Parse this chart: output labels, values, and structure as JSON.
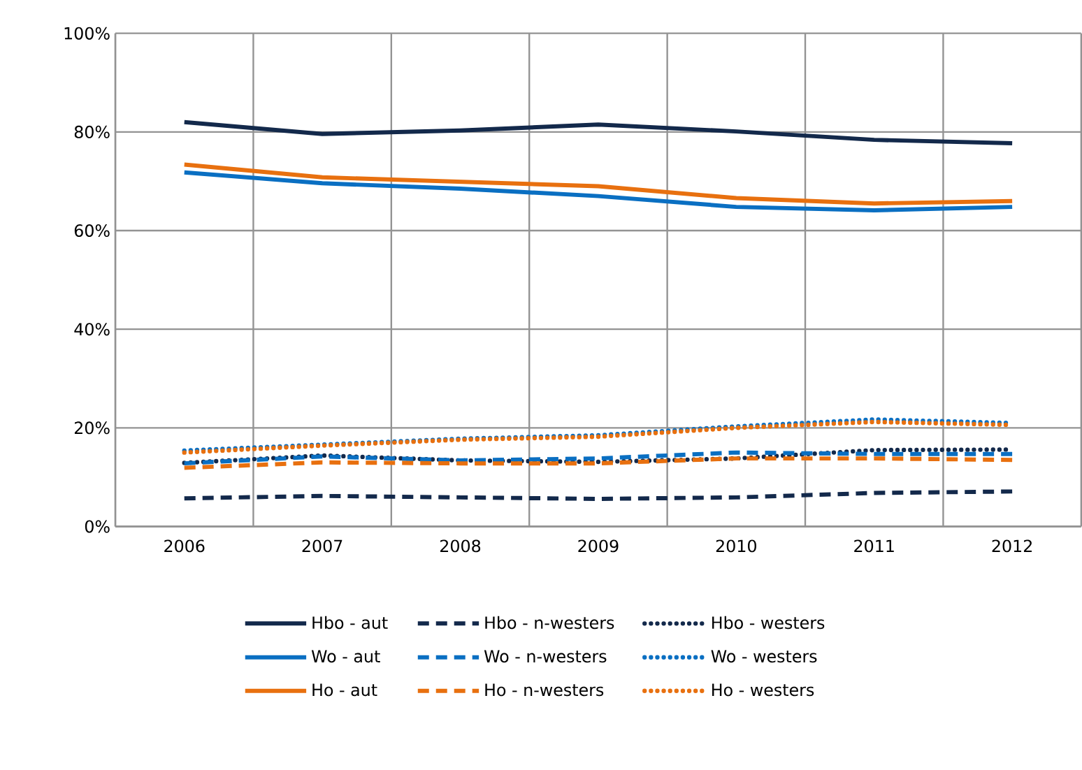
{
  "chart_data": {
    "type": "line",
    "categories": [
      "2006",
      "2007",
      "2008",
      "2009",
      "2010",
      "2011",
      "2012"
    ],
    "ylim": [
      0,
      100
    ],
    "yticks": [
      {
        "value": 0,
        "label": "0%"
      },
      {
        "value": 20,
        "label": "20%"
      },
      {
        "value": 40,
        "label": "40%"
      },
      {
        "value": 60,
        "label": "60%"
      },
      {
        "value": 80,
        "label": "80%"
      },
      {
        "value": 100,
        "label": "100%"
      }
    ],
    "grid": true,
    "legend": "bottom",
    "marker": "none",
    "series": [
      {
        "name": "Hbo - aut",
        "color": "#13294b",
        "line_style": "solid",
        "values": [
          82.0,
          79.6,
          80.3,
          81.5,
          80.1,
          78.4,
          77.7
        ]
      },
      {
        "name": "Hbo - n-westers",
        "color": "#13294b",
        "line_style": "dashed",
        "values": [
          5.7,
          6.2,
          5.9,
          5.6,
          5.9,
          6.8,
          7.1
        ]
      },
      {
        "name": "Hbo - westers",
        "color": "#13294b",
        "line_style": "dotted",
        "values": [
          12.9,
          14.4,
          13.4,
          13.1,
          13.8,
          15.5,
          15.6
        ]
      },
      {
        "name": "Wo - aut",
        "color": "#0a6fc2",
        "line_style": "solid",
        "values": [
          71.8,
          69.6,
          68.5,
          67.0,
          64.8,
          64.1,
          64.8
        ]
      },
      {
        "name": "Wo - n-westers",
        "color": "#0a6fc2",
        "line_style": "dashed",
        "values": [
          12.8,
          14.2,
          13.4,
          13.8,
          15.0,
          14.7,
          14.7
        ]
      },
      {
        "name": "Wo - westers",
        "color": "#0a6fc2",
        "line_style": "dotted",
        "values": [
          15.4,
          16.6,
          17.8,
          18.5,
          20.3,
          21.7,
          21.0
        ]
      },
      {
        "name": "Ho - aut",
        "color": "#e8700f",
        "line_style": "solid",
        "values": [
          73.4,
          70.8,
          69.9,
          69.0,
          66.6,
          65.5,
          66.0
        ]
      },
      {
        "name": "Ho - n-westers",
        "color": "#e8700f",
        "line_style": "dashed",
        "values": [
          11.9,
          13.0,
          12.8,
          12.8,
          13.8,
          13.8,
          13.5
        ]
      },
      {
        "name": "Ho - westers",
        "color": "#e8700f",
        "line_style": "dotted",
        "values": [
          15.0,
          16.4,
          17.6,
          18.2,
          20.0,
          21.2,
          20.6
        ]
      }
    ]
  }
}
